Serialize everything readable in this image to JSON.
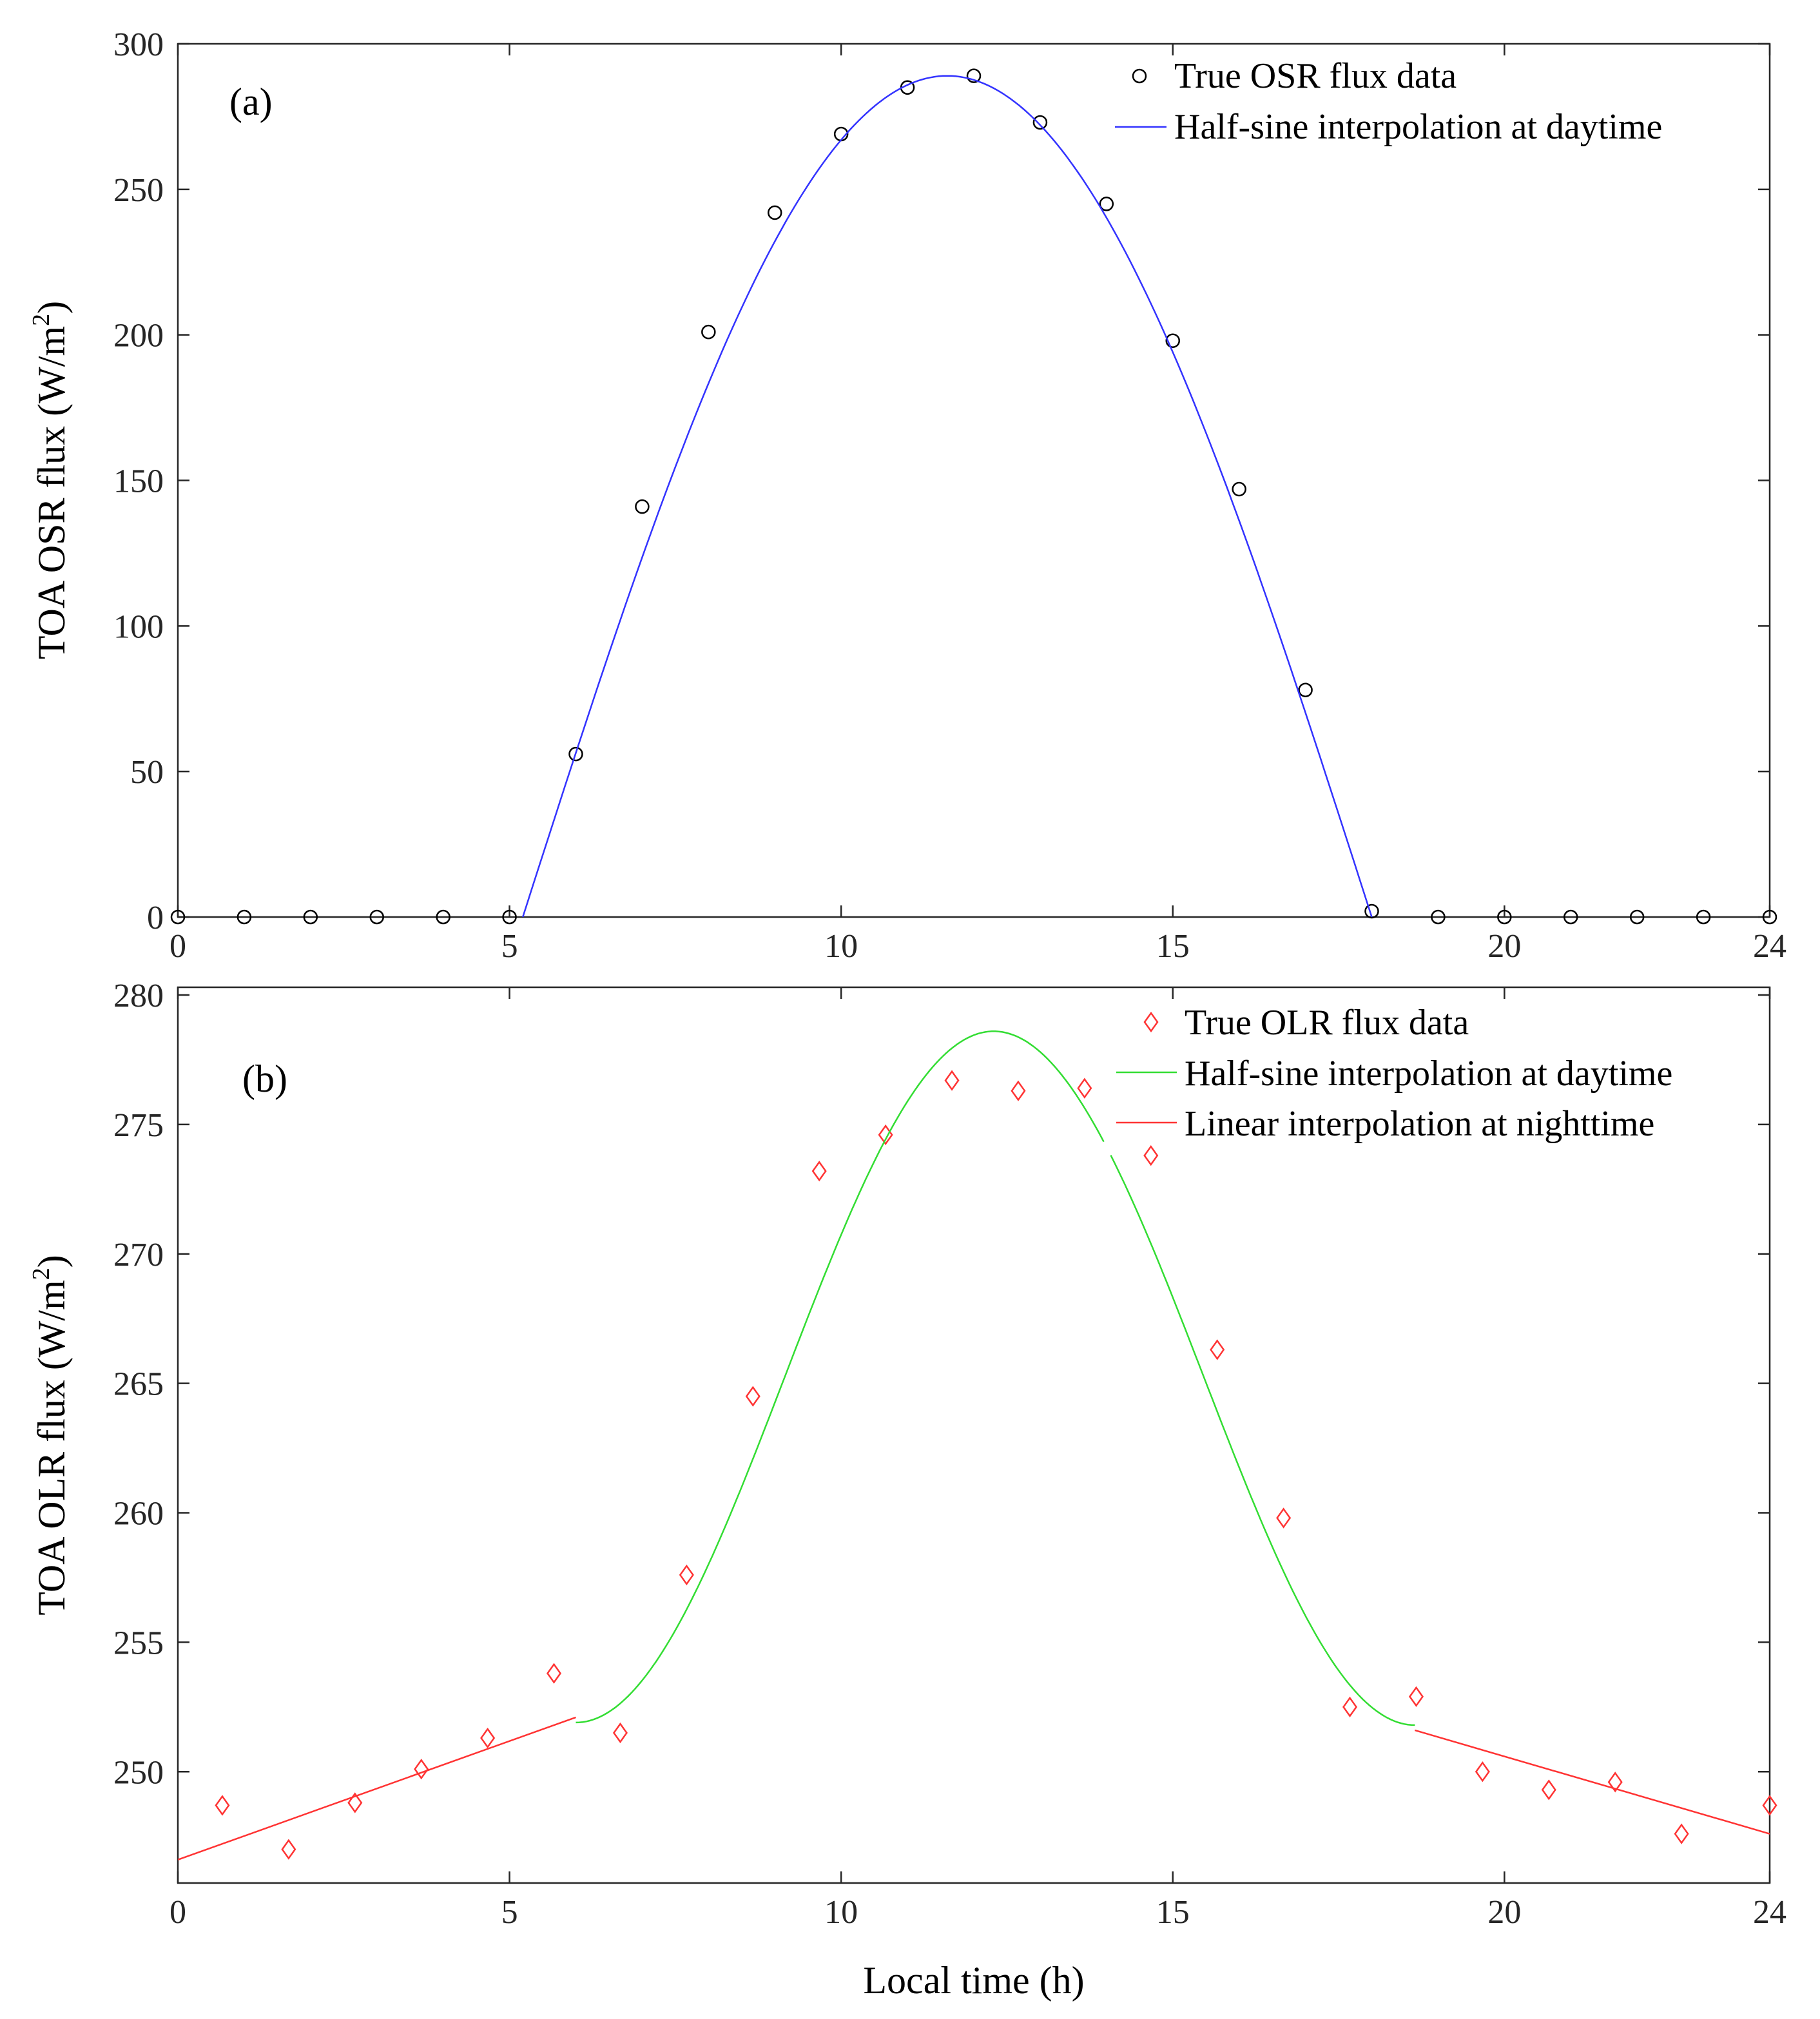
{
  "chart_data": [
    {
      "panel": "(a)",
      "type": "line",
      "ylabel": "TOA OSR flux (W/m",
      "ylabel_sup": "2",
      "ylabel_end": ")",
      "xlabel": "",
      "xlim": [
        0,
        24
      ],
      "ylim": [
        0,
        300
      ],
      "xticks": [
        0,
        5,
        10,
        15,
        20,
        24
      ],
      "yticks": [
        0,
        50,
        100,
        150,
        200,
        250,
        300
      ],
      "grid": false,
      "legend_position": "top-right",
      "series": [
        {
          "name": "True OSR flux data",
          "kind": "markers",
          "marker": "circle",
          "color": "#000000",
          "x": [
            0,
            1,
            2,
            3,
            4,
            5,
            6,
            7,
            8,
            9,
            10,
            11,
            12,
            13,
            14,
            15,
            16,
            17,
            18,
            19,
            20,
            21,
            22,
            23,
            24
          ],
          "y": [
            0,
            0,
            0,
            0,
            0,
            0,
            56,
            141,
            201,
            242,
            269,
            285,
            289,
            273,
            245,
            198,
            147,
            78,
            2,
            0,
            0,
            0,
            0,
            0,
            0
          ]
        },
        {
          "name": "Half-sine interpolation at daytime",
          "kind": "curve",
          "color": "#3333ff",
          "sunrise": 5.2,
          "sunset": 18.0,
          "peak_x": 11.6,
          "peak_y": 289
        }
      ]
    },
    {
      "panel": "(b)",
      "type": "line",
      "ylabel": "TOA OLR flux (W/m",
      "ylabel_sup": "2",
      "ylabel_end": ")",
      "xlabel": "Local time (h)",
      "xlim": [
        0,
        24
      ],
      "ylim": [
        245.7,
        280.3
      ],
      "xticks": [
        0,
        5,
        10,
        15,
        20,
        24
      ],
      "yticks": [
        250,
        255,
        260,
        265,
        270,
        275,
        280
      ],
      "grid": false,
      "legend_position": "top-right",
      "series": [
        {
          "name": "True OLR flux data",
          "kind": "markers",
          "marker": "diamond",
          "color": "#ff3333",
          "x": [
            0.67,
            1.67,
            2.67,
            3.67,
            4.67,
            5.67,
            6.67,
            7.67,
            8.67,
            9.67,
            10.67,
            11.67,
            12.67,
            13.67,
            14.67,
            15.67,
            16.67,
            17.67,
            18.67,
            19.67,
            20.67,
            21.67,
            22.67,
            24.0
          ],
          "y": [
            248.7,
            247.0,
            248.8,
            250.1,
            251.3,
            253.8,
            251.5,
            257.6,
            264.5,
            273.2,
            274.6,
            276.7,
            276.3,
            276.4,
            273.8,
            266.3,
            259.8,
            252.5,
            252.9,
            250.0,
            249.3,
            249.6,
            247.6,
            248.7
          ]
        },
        {
          "name": "Half-sine interpolation at daytime",
          "kind": "curve",
          "color": "#33dd33",
          "start_x": 6.0,
          "end_x": 18.65,
          "base_start": 251.9,
          "base_end": 251.8,
          "peak_x": 12.3,
          "peak_y": 278.6
        },
        {
          "name": "Linear interpolation at nighttime",
          "kind": "lines",
          "color": "#ff3333",
          "segments": [
            {
              "x": [
                0,
                6.0
              ],
              "y": [
                246.6,
                252.1
              ]
            },
            {
              "x": [
                18.65,
                24.0
              ],
              "y": [
                251.6,
                247.6
              ]
            }
          ]
        }
      ]
    }
  ]
}
